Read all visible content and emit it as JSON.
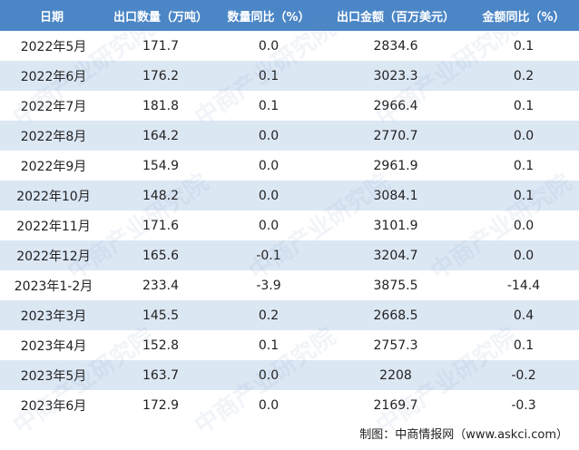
{
  "table": {
    "headers": [
      "日期",
      "出口数量（万吨）",
      "数量同比（%）",
      "出口金额（百万美元）",
      "金额同比（%）"
    ],
    "rows": [
      [
        "2022年5月",
        "171.7",
        "0.0",
        "2834.6",
        "0.1"
      ],
      [
        "2022年6月",
        "176.2",
        "0.1",
        "3023.3",
        "0.2"
      ],
      [
        "2022年7月",
        "181.8",
        "0.1",
        "2966.4",
        "0.1"
      ],
      [
        "2022年8月",
        "164.2",
        "0.0",
        "2770.7",
        "0.0"
      ],
      [
        "2022年9月",
        "154.9",
        "0.0",
        "2961.9",
        "0.1"
      ],
      [
        "2022年10月",
        "148.2",
        "0.0",
        "3084.1",
        "0.1"
      ],
      [
        "2022年11月",
        "171.6",
        "0.0",
        "3101.9",
        "0.0"
      ],
      [
        "2022年12月",
        "165.6",
        "-0.1",
        "3204.7",
        "0.0"
      ],
      [
        "2023年1-2月",
        "233.4",
        "-3.9",
        "3875.5",
        "-14.4"
      ],
      [
        "2023年3月",
        "145.5",
        "0.2",
        "2668.5",
        "0.4"
      ],
      [
        "2023年4月",
        "152.8",
        "0.1",
        "2757.3",
        "0.1"
      ],
      [
        "2023年5月",
        "163.7",
        "0.0",
        "2208",
        "-0.2"
      ],
      [
        "2023年6月",
        "172.9",
        "0.0",
        "2169.7",
        "-0.3"
      ]
    ]
  },
  "source": "制图：中商情报网（www.askci.com）",
  "watermark": "中商产业研究院",
  "colors": {
    "header_bg": "#4B86C6",
    "alt_row_bg": "#DCE7F4"
  }
}
